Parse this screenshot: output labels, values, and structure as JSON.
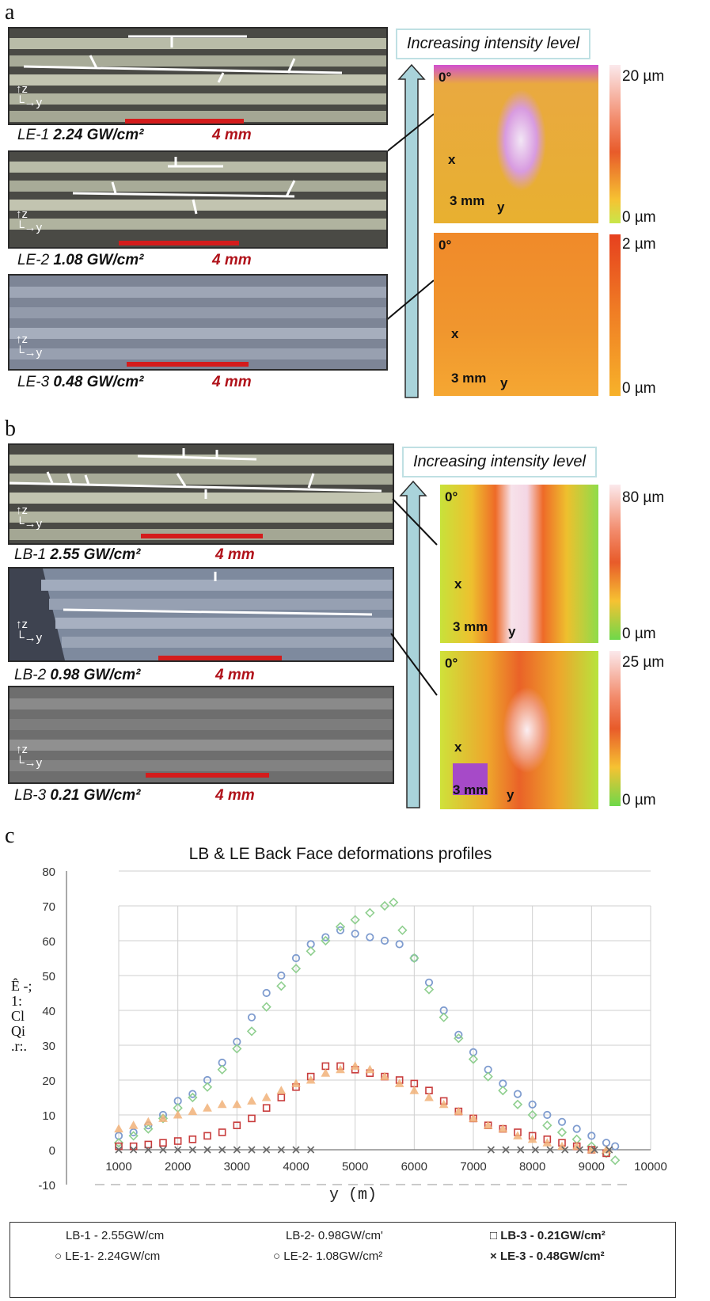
{
  "panel_a": {
    "letter": "a",
    "specimens": [
      {
        "id": "LE-1",
        "intensity": "2.24 GW/cm²",
        "scale": "4 mm"
      },
      {
        "id": "LE-2",
        "intensity": "1.08 GW/cm²",
        "scale": "4 mm"
      },
      {
        "id": "LE-3",
        "intensity": "0.48 GW/cm²",
        "scale": "4 mm"
      }
    ],
    "intensity_label": "Increasing intensity level",
    "maps": [
      {
        "angle": "0°",
        "x": "x",
        "y": "y",
        "scale": "3 mm",
        "cbar_max": "20 µm",
        "cbar_min": "0 µm"
      },
      {
        "angle": "0°",
        "x": "x",
        "y": "y",
        "scale": "3 mm",
        "cbar_max": "2 µm",
        "cbar_min": "0 µm"
      }
    ]
  },
  "panel_b": {
    "letter": "b",
    "specimens": [
      {
        "id": "LB-1",
        "intensity": "2.55 GW/cm²",
        "scale": "4 mm"
      },
      {
        "id": "LB-2",
        "intensity": "0.98 GW/cm²",
        "scale": "4 mm"
      },
      {
        "id": "LB-3",
        "intensity": "0.21 GW/cm²",
        "scale": "4 mm"
      }
    ],
    "intensity_label": "Increasing intensity level",
    "maps": [
      {
        "angle": "0°",
        "x": "x",
        "y": "y",
        "scale": "3 mm",
        "cbar_max": "80 µm",
        "cbar_min": "0 µm"
      },
      {
        "angle": "0°",
        "x": "x",
        "y": "y",
        "scale": "3 mm",
        "cbar_max": "25 µm",
        "cbar_min": "0 µm"
      }
    ]
  },
  "panel_c": {
    "letter": "c",
    "ylabel_glyphs": "Ê -; 1: Cl Qi .r:."
  },
  "chart_data": {
    "type": "scatter",
    "title": "LB & LE Back Face deformations profiles",
    "xlabel": "y (m)",
    "ylabel": "",
    "xlim": [
      1000,
      10000
    ],
    "ylim": [
      -10,
      80
    ],
    "xticks": [
      1000,
      2000,
      3000,
      4000,
      5000,
      6000,
      7000,
      8000,
      9000,
      10000
    ],
    "yticks": [
      -10,
      0,
      10,
      20,
      30,
      40,
      50,
      60,
      70,
      80
    ],
    "grid": true,
    "legend_position": "bottom",
    "series": [
      {
        "name": "LB-1 - 2.55GW/cm",
        "color": "#7f9ccf",
        "marker": "circle",
        "x": [
          1000,
          1250,
          1500,
          1750,
          2000,
          2250,
          2500,
          2750,
          3000,
          3250,
          3500,
          3750,
          4000,
          4250,
          4500,
          4750,
          5000,
          5250,
          5500,
          5750,
          6000,
          6250,
          6500,
          6750,
          7000,
          7250,
          7500,
          7750,
          8000,
          8250,
          8500,
          8750,
          9000,
          9250,
          9400
        ],
        "y": [
          4,
          5,
          7,
          10,
          14,
          16,
          20,
          25,
          31,
          38,
          45,
          50,
          55,
          59,
          61,
          63,
          62,
          61,
          60,
          59,
          55,
          48,
          40,
          33,
          28,
          23,
          19,
          16,
          13,
          10,
          8,
          6,
          4,
          2,
          1
        ]
      },
      {
        "name": "LB-2- 0.98GW/cm'",
        "color": "#8fcf8f",
        "marker": "diamond",
        "x": [
          1000,
          1250,
          1500,
          1750,
          2000,
          2250,
          2500,
          2750,
          3000,
          3250,
          3500,
          3750,
          4000,
          4250,
          4500,
          4750,
          5000,
          5250,
          5500,
          5650,
          5800,
          6000,
          6250,
          6500,
          6750,
          7000,
          7250,
          7500,
          7750,
          8000,
          8250,
          8500,
          8750,
          9000,
          9250,
          9400
        ],
        "y": [
          2,
          4,
          6,
          9,
          12,
          15,
          18,
          23,
          29,
          34,
          41,
          47,
          52,
          57,
          60,
          64,
          66,
          68,
          70,
          71,
          63,
          55,
          46,
          38,
          32,
          26,
          21,
          17,
          13,
          10,
          7,
          5,
          3,
          1,
          -1,
          -3
        ]
      },
      {
        "name": "LB-3 - 0.21GW/cm²",
        "color": "#c83c3c",
        "marker": "square",
        "x": [
          1000,
          1250,
          1500,
          1750,
          2000,
          2250,
          2500,
          2750,
          3000,
          3250,
          3500,
          3750,
          4000,
          4250,
          4500,
          4750,
          5000,
          5250,
          5500,
          5750,
          6000,
          6250,
          6500,
          6750,
          7000,
          7250,
          7500,
          7750,
          8000,
          8250,
          8500,
          8750,
          9000,
          9250
        ],
        "y": [
          1,
          1,
          1.5,
          2,
          2.5,
          3,
          4,
          5,
          7,
          9,
          12,
          15,
          18,
          21,
          24,
          24,
          23,
          22,
          21,
          20,
          19,
          17,
          14,
          11,
          9,
          7,
          6,
          5,
          4,
          3,
          2,
          1,
          0,
          -1
        ]
      },
      {
        "name": "LE-1- 2.24GW/cm",
        "color": "#9999cc",
        "marker": "circle",
        "x": [],
        "y": []
      },
      {
        "name": "LE-2- 1.08GW/cm²",
        "color": "#f2b27a",
        "marker": "triangle",
        "x": [
          1000,
          1250,
          1500,
          1750,
          2000,
          2250,
          2500,
          2750,
          3000,
          3250,
          3500,
          3750,
          4000,
          4250,
          4500,
          4750,
          5000,
          5250,
          5500,
          5750,
          6000,
          6250,
          6500,
          6750,
          7000,
          7250,
          7500,
          7750,
          8000,
          8250,
          8500,
          8750,
          9000,
          9250
        ],
        "y": [
          6,
          7,
          8,
          9,
          10,
          11,
          12,
          13,
          13,
          14,
          15,
          17,
          19,
          20,
          22,
          23,
          24,
          23,
          21,
          19,
          17,
          15,
          13,
          11,
          9,
          7,
          6,
          4,
          3,
          2,
          1,
          1,
          0,
          0
        ]
      },
      {
        "name": "LE-3 - 0.48GW/cm²",
        "color": "#666666",
        "marker": "x",
        "x": [
          1000,
          1250,
          1500,
          1750,
          2000,
          2250,
          2500,
          2750,
          3000,
          3250,
          3500,
          3750,
          4000,
          4250,
          7300,
          7550,
          7800,
          8050,
          8300,
          8550,
          8800,
          9050,
          9300
        ],
        "y": [
          0,
          0,
          0,
          0,
          0,
          0,
          0,
          0,
          0,
          0,
          0,
          0,
          0,
          0,
          0,
          0,
          0,
          0,
          0,
          0,
          0,
          0,
          0
        ]
      }
    ]
  },
  "legend": [
    {
      "label": "LB-1 - 2.55GW/cm",
      "marker": ""
    },
    {
      "label": "LB-2- 0.98GW/cm'",
      "marker": ""
    },
    {
      "label": "LB-3 - 0.21GW/cm²",
      "marker": "□"
    },
    {
      "label": "LE-1- 2.24GW/cm",
      "marker": "○"
    },
    {
      "label": "LE-2- 1.08GW/cm²",
      "marker": "○"
    },
    {
      "label": "LE-3 - 0.48GW/cm²",
      "marker": "×"
    }
  ]
}
